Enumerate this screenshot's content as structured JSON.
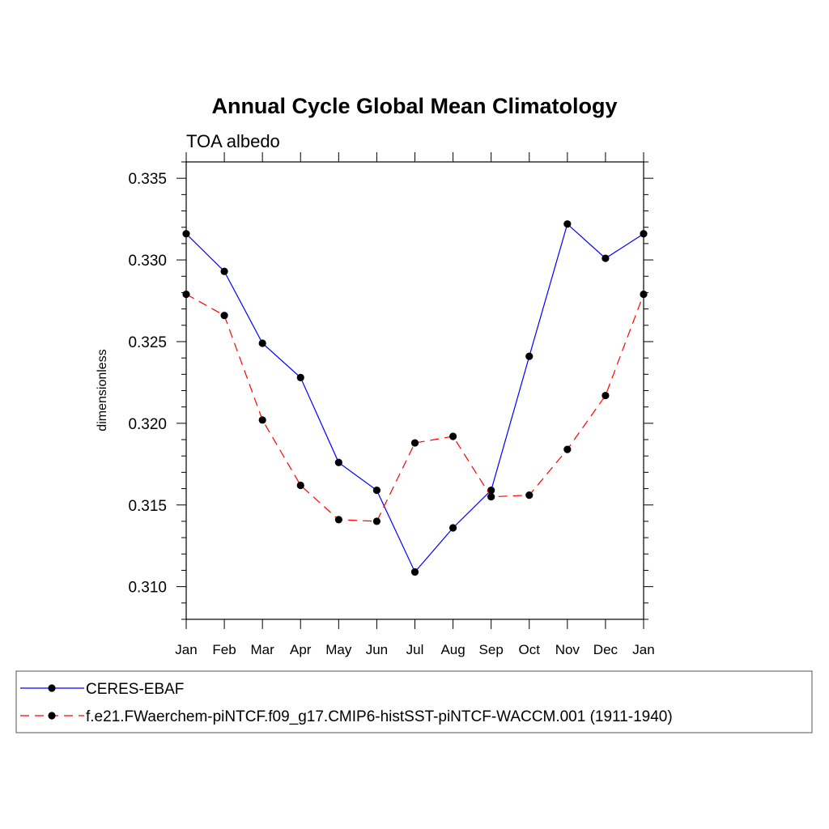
{
  "chart_data": {
    "type": "line",
    "title": "Annual Cycle Global Mean Climatology",
    "subtitle": "TOA albedo",
    "xlabel": "",
    "ylabel": "dimensionless",
    "categories": [
      "Jan",
      "Feb",
      "Mar",
      "Apr",
      "May",
      "Jun",
      "Jul",
      "Aug",
      "Sep",
      "Oct",
      "Nov",
      "Dec",
      "Jan"
    ],
    "ylim": [
      0.308,
      0.336
    ],
    "yticks": [
      0.31,
      0.315,
      0.32,
      0.325,
      0.33,
      0.335
    ],
    "ytick_labels": [
      "0.310",
      "0.315",
      "0.320",
      "0.325",
      "0.330",
      "0.335"
    ],
    "grid": false,
    "legend_position": "bottom",
    "series": [
      {
        "name": "CERES-EBAF",
        "color": "#0000ff",
        "dashed": false,
        "values": [
          0.3316,
          0.3293,
          0.3249,
          0.3228,
          0.3176,
          0.3159,
          0.3109,
          0.3136,
          0.3159,
          0.3241,
          0.3322,
          0.3301,
          0.3316
        ]
      },
      {
        "name": "f.e21.FWaerchem-piNTCF.f09_g17.CMIP6-histSST-piNTCF-WACCM.001 (1911-1940)",
        "color": "#ff0000",
        "dashed": true,
        "values": [
          0.3279,
          0.3266,
          0.3202,
          0.3162,
          0.3141,
          0.314,
          0.3188,
          0.3192,
          0.3155,
          0.3156,
          0.3184,
          0.3217,
          0.3279
        ]
      }
    ]
  }
}
